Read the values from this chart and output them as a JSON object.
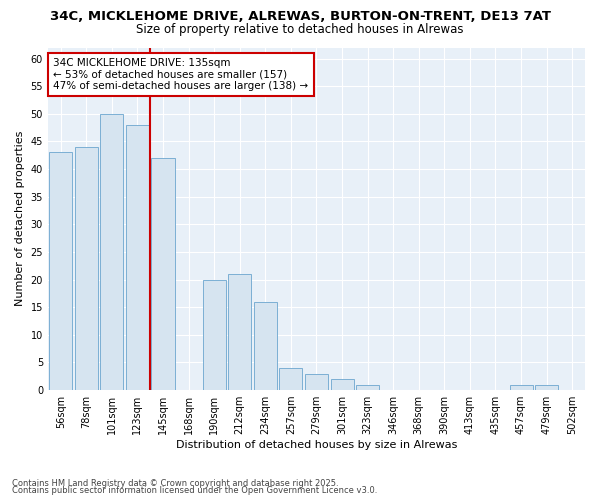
{
  "title_line1": "34C, MICKLEHOME DRIVE, ALREWAS, BURTON-ON-TRENT, DE13 7AT",
  "title_line2": "Size of property relative to detached houses in Alrewas",
  "xlabel": "Distribution of detached houses by size in Alrewas",
  "ylabel": "Number of detached properties",
  "categories": [
    "56sqm",
    "78sqm",
    "101sqm",
    "123sqm",
    "145sqm",
    "168sqm",
    "190sqm",
    "212sqm",
    "234sqm",
    "257sqm",
    "279sqm",
    "301sqm",
    "323sqm",
    "346sqm",
    "368sqm",
    "390sqm",
    "413sqm",
    "435sqm",
    "457sqm",
    "479sqm",
    "502sqm"
  ],
  "values": [
    43,
    44,
    50,
    48,
    42,
    0,
    20,
    21,
    16,
    4,
    3,
    2,
    1,
    0,
    0,
    0,
    0,
    0,
    1,
    1,
    0
  ],
  "bar_color": "#d6e4f0",
  "bar_edge_color": "#7bafd4",
  "property_line_x": 3.5,
  "annotation_text": "34C MICKLEHOME DRIVE: 135sqm\n← 53% of detached houses are smaller (157)\n47% of semi-detached houses are larger (138) →",
  "annotation_box_color": "#ffffff",
  "annotation_box_edge_color": "#cc0000",
  "red_line_color": "#cc0000",
  "ylim": [
    0,
    62
  ],
  "yticks": [
    0,
    5,
    10,
    15,
    20,
    25,
    30,
    35,
    40,
    45,
    50,
    55,
    60
  ],
  "fig_bg_color": "#ffffff",
  "plot_bg_color": "#e8f0f8",
  "footer_line1": "Contains HM Land Registry data © Crown copyright and database right 2025.",
  "footer_line2": "Contains public sector information licensed under the Open Government Licence v3.0.",
  "title_fontsize": 9.5,
  "subtitle_fontsize": 8.5,
  "tick_fontsize": 7,
  "axis_label_fontsize": 8,
  "footer_fontsize": 6
}
